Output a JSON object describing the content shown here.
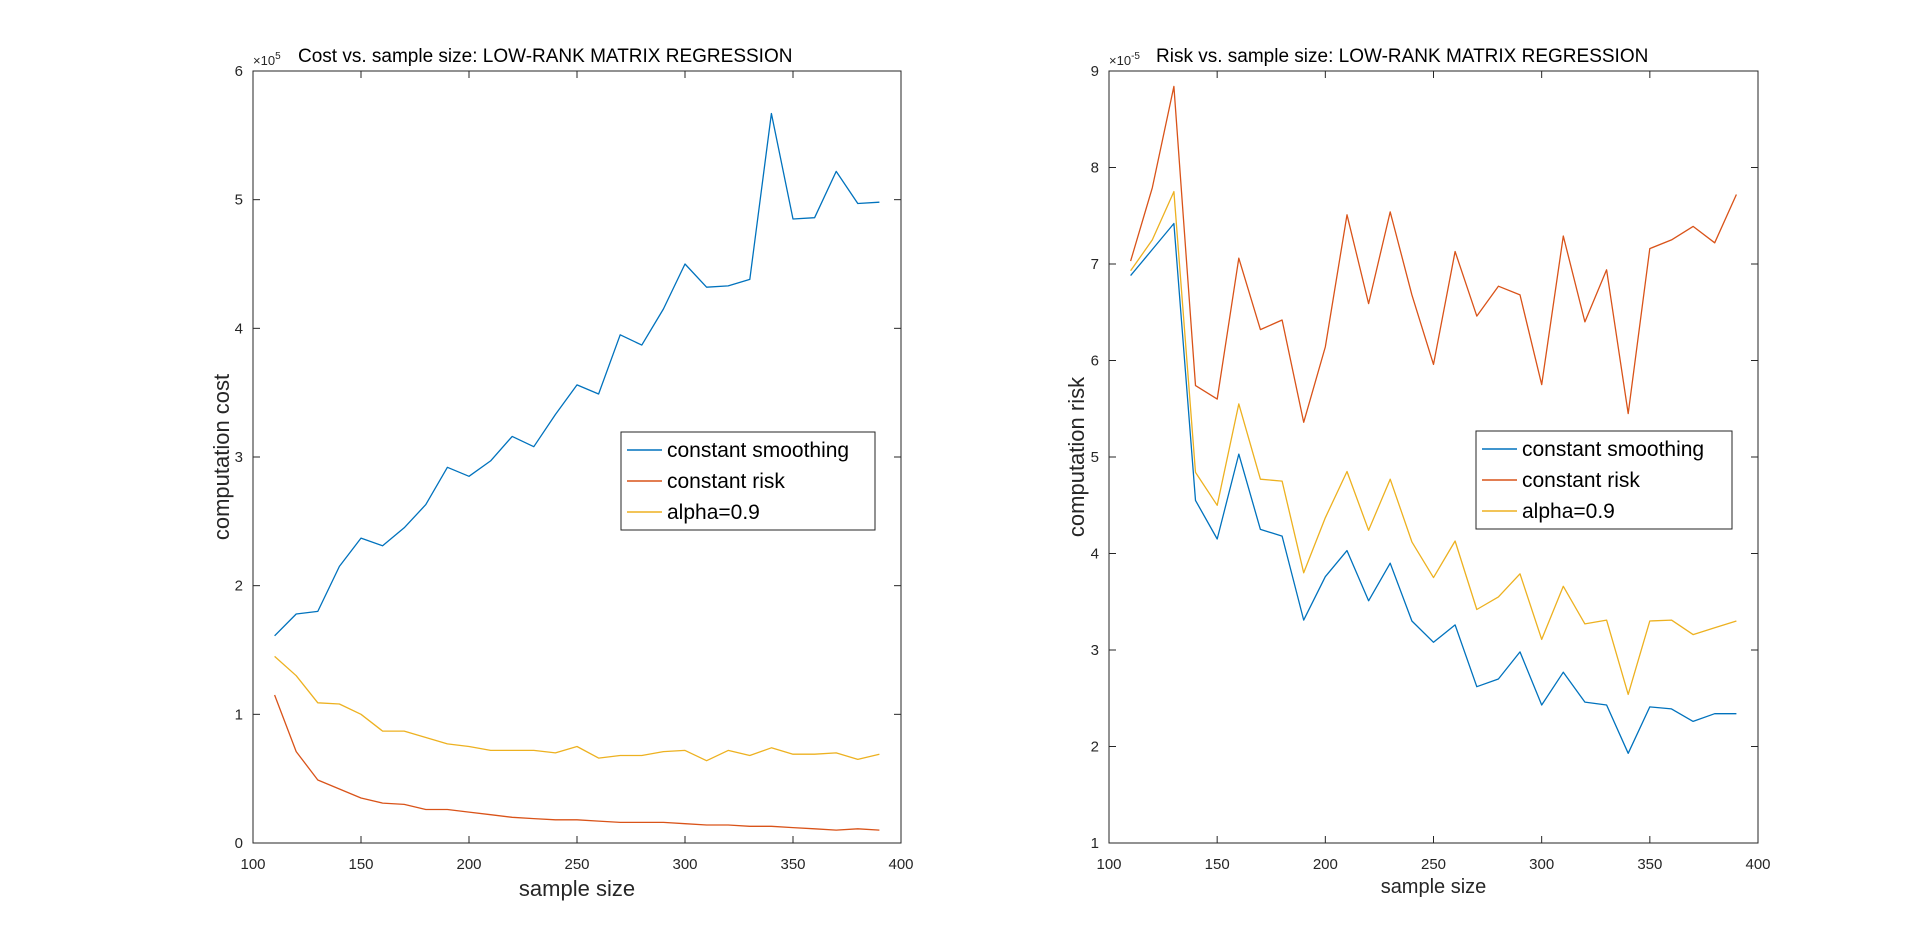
{
  "chart_data": [
    {
      "type": "line",
      "title": "Cost vs. sample size: LOW-RANK MATRIX REGRESSION",
      "xlabel": "sample size",
      "ylabel": "computation cost",
      "y_multiplier_label": "×10",
      "y_multiplier_exponent": "5",
      "xlim": [
        100,
        400
      ],
      "ylim": [
        0,
        6
      ],
      "xticks": [
        100,
        150,
        200,
        250,
        300,
        350,
        400
      ],
      "yticks": [
        0,
        1,
        2,
        3,
        4,
        5,
        6
      ],
      "legend_location": "right-center",
      "x": [
        110,
        120,
        130,
        140,
        150,
        160,
        170,
        180,
        190,
        200,
        210,
        220,
        230,
        240,
        250,
        260,
        270,
        280,
        290,
        300,
        310,
        320,
        330,
        340,
        350,
        360,
        370,
        380,
        390
      ],
      "series": [
        {
          "name": "constant smoothing",
          "color": "#0072BD",
          "values": [
            1.61,
            1.78,
            1.8,
            2.15,
            2.37,
            2.31,
            2.45,
            2.63,
            2.92,
            2.85,
            2.97,
            3.16,
            3.08,
            3.33,
            3.56,
            3.49,
            3.95,
            3.87,
            4.15,
            4.5,
            4.32,
            4.33,
            4.38,
            5.67,
            4.85,
            4.86,
            5.22,
            4.97,
            4.98
          ]
        },
        {
          "name": "constant risk",
          "color": "#D95319",
          "values": [
            1.15,
            0.71,
            0.49,
            0.42,
            0.35,
            0.31,
            0.3,
            0.26,
            0.26,
            0.24,
            0.22,
            0.2,
            0.19,
            0.18,
            0.18,
            0.17,
            0.16,
            0.16,
            0.16,
            0.15,
            0.14,
            0.14,
            0.13,
            0.13,
            0.12,
            0.11,
            0.1,
            0.11,
            0.1
          ]
        },
        {
          "name": "alpha=0.9",
          "color": "#EDB120",
          "values": [
            1.45,
            1.3,
            1.09,
            1.08,
            1.0,
            0.87,
            0.87,
            0.82,
            0.77,
            0.75,
            0.72,
            0.72,
            0.72,
            0.7,
            0.75,
            0.66,
            0.68,
            0.68,
            0.71,
            0.72,
            0.64,
            0.72,
            0.68,
            0.74,
            0.69,
            0.69,
            0.7,
            0.65,
            0.69
          ]
        }
      ]
    },
    {
      "type": "line",
      "title": "Risk vs. sample size: LOW-RANK MATRIX REGRESSION",
      "xlabel": "sample size",
      "ylabel": "computation risk",
      "y_multiplier_label": "×10",
      "y_multiplier_exponent": "-5",
      "xlim": [
        100,
        400
      ],
      "ylim": [
        1,
        9
      ],
      "xticks": [
        100,
        150,
        200,
        250,
        300,
        350,
        400
      ],
      "yticks": [
        1,
        2,
        3,
        4,
        5,
        6,
        7,
        8,
        9
      ],
      "legend_location": "right-center",
      "x": [
        110,
        120,
        130,
        140,
        150,
        160,
        170,
        180,
        190,
        200,
        210,
        220,
        230,
        240,
        250,
        260,
        270,
        280,
        290,
        300,
        310,
        320,
        330,
        340,
        350,
        360,
        370,
        380,
        390
      ],
      "series": [
        {
          "name": "constant smoothing",
          "color": "#0072BD",
          "values": [
            6.88,
            7.15,
            7.42,
            4.55,
            4.15,
            5.03,
            4.25,
            4.18,
            3.31,
            3.76,
            4.03,
            3.51,
            3.9,
            3.3,
            3.08,
            3.26,
            2.62,
            2.7,
            2.98,
            2.43,
            2.77,
            2.46,
            2.43,
            1.93,
            2.41,
            2.39,
            2.26,
            2.34,
            2.34
          ]
        },
        {
          "name": "constant risk",
          "color": "#D95319",
          "values": [
            7.03,
            7.79,
            8.84,
            5.74,
            5.6,
            7.06,
            6.32,
            6.42,
            5.36,
            6.14,
            7.51,
            6.59,
            7.54,
            6.68,
            5.96,
            7.13,
            6.46,
            6.77,
            6.68,
            5.75,
            7.29,
            6.4,
            6.94,
            5.45,
            7.16,
            7.25,
            7.39,
            7.22,
            7.72
          ]
        },
        {
          "name": "alpha=0.9",
          "color": "#EDB120",
          "values": [
            6.93,
            7.25,
            7.75,
            4.84,
            4.5,
            5.55,
            4.77,
            4.75,
            3.8,
            4.37,
            4.85,
            4.24,
            4.77,
            4.12,
            3.75,
            4.13,
            3.42,
            3.55,
            3.79,
            3.11,
            3.66,
            3.27,
            3.31,
            2.54,
            3.3,
            3.31,
            3.16,
            3.23,
            3.3
          ]
        }
      ]
    }
  ]
}
